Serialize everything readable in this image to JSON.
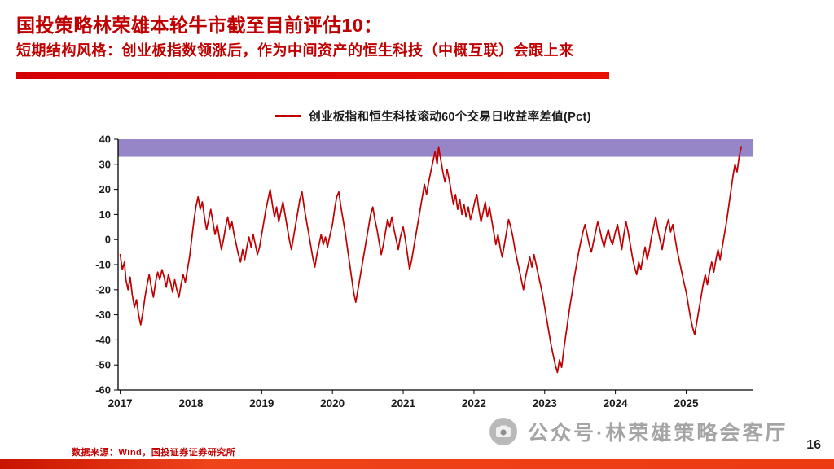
{
  "slide": {
    "title": "国投策略林荣雄本轮牛市截至目前评估10：",
    "subtitle": "短期结构风格：创业板指数领涨后，作为中间资产的恒生科技（中概互联）会跟上来",
    "accent_color": "#c00000",
    "source_note": "数据来源：Wind，国投证券证券研究所",
    "watermark": "公众号·林荣雄策略会客厅",
    "page_number": "16"
  },
  "chart_data": {
    "type": "line",
    "title": "创业板指和恒生科技滚动60个交易日收益率差值(Pct)",
    "xlabel": "",
    "ylabel": "",
    "grid": false,
    "legend_position": "top-center",
    "xlim": [
      2016.97,
      2025.95
    ],
    "ylim": [
      -60,
      40
    ],
    "x_ticks": [
      2017,
      2018,
      2019,
      2020,
      2021,
      2022,
      2023,
      2024,
      2025
    ],
    "y_ticks": [
      40,
      30,
      20,
      10,
      0,
      -10,
      -20,
      -30,
      -40,
      -50,
      -60
    ],
    "highlight_band": {
      "from": 33,
      "to": 40,
      "color": "#8d7cc2"
    },
    "series": [
      {
        "name": "创业板指和恒生科技滚动60个交易日收益率差值(Pct)",
        "color": "#c00000",
        "points": [
          [
            2017.0,
            -6
          ],
          [
            2017.03,
            -12
          ],
          [
            2017.06,
            -9
          ],
          [
            2017.08,
            -16
          ],
          [
            2017.11,
            -20
          ],
          [
            2017.14,
            -15
          ],
          [
            2017.17,
            -22
          ],
          [
            2017.2,
            -27
          ],
          [
            2017.23,
            -24
          ],
          [
            2017.26,
            -30
          ],
          [
            2017.29,
            -34
          ],
          [
            2017.32,
            -29
          ],
          [
            2017.35,
            -23
          ],
          [
            2017.38,
            -18
          ],
          [
            2017.41,
            -14
          ],
          [
            2017.44,
            -19
          ],
          [
            2017.47,
            -23
          ],
          [
            2017.5,
            -17
          ],
          [
            2017.53,
            -13
          ],
          [
            2017.56,
            -16
          ],
          [
            2017.59,
            -12
          ],
          [
            2017.62,
            -15
          ],
          [
            2017.65,
            -19
          ],
          [
            2017.68,
            -14
          ],
          [
            2017.71,
            -17
          ],
          [
            2017.74,
            -21
          ],
          [
            2017.77,
            -16
          ],
          [
            2017.8,
            -20
          ],
          [
            2017.83,
            -23
          ],
          [
            2017.86,
            -18
          ],
          [
            2017.89,
            -14
          ],
          [
            2017.92,
            -17
          ],
          [
            2017.95,
            -12
          ],
          [
            2017.98,
            -7
          ],
          [
            2018.01,
            0
          ],
          [
            2018.04,
            7
          ],
          [
            2018.07,
            13
          ],
          [
            2018.1,
            17
          ],
          [
            2018.13,
            12
          ],
          [
            2018.16,
            15
          ],
          [
            2018.19,
            9
          ],
          [
            2018.22,
            4
          ],
          [
            2018.25,
            8
          ],
          [
            2018.28,
            12
          ],
          [
            2018.31,
            7
          ],
          [
            2018.34,
            2
          ],
          [
            2018.37,
            6
          ],
          [
            2018.4,
            1
          ],
          [
            2018.43,
            -4
          ],
          [
            2018.46,
            0
          ],
          [
            2018.49,
            5
          ],
          [
            2018.52,
            9
          ],
          [
            2018.55,
            4
          ],
          [
            2018.58,
            7
          ],
          [
            2018.61,
            2
          ],
          [
            2018.64,
            -2
          ],
          [
            2018.67,
            -6
          ],
          [
            2018.7,
            -9
          ],
          [
            2018.73,
            -4
          ],
          [
            2018.76,
            -8
          ],
          [
            2018.79,
            -3
          ],
          [
            2018.82,
            1
          ],
          [
            2018.85,
            -3
          ],
          [
            2018.88,
            2
          ],
          [
            2018.91,
            -2
          ],
          [
            2018.94,
            -6
          ],
          [
            2018.97,
            -3
          ],
          [
            2019.0,
            2
          ],
          [
            2019.03,
            7
          ],
          [
            2019.06,
            12
          ],
          [
            2019.09,
            16
          ],
          [
            2019.12,
            20
          ],
          [
            2019.15,
            14
          ],
          [
            2019.18,
            9
          ],
          [
            2019.21,
            13
          ],
          [
            2019.24,
            7
          ],
          [
            2019.27,
            11
          ],
          [
            2019.3,
            15
          ],
          [
            2019.33,
            10
          ],
          [
            2019.36,
            5
          ],
          [
            2019.39,
            0
          ],
          [
            2019.42,
            -4
          ],
          [
            2019.45,
            1
          ],
          [
            2019.48,
            6
          ],
          [
            2019.51,
            11
          ],
          [
            2019.54,
            16
          ],
          [
            2019.57,
            19
          ],
          [
            2019.6,
            13
          ],
          [
            2019.63,
            8
          ],
          [
            2019.66,
            3
          ],
          [
            2019.69,
            -2
          ],
          [
            2019.72,
            -7
          ],
          [
            2019.75,
            -11
          ],
          [
            2019.78,
            -6
          ],
          [
            2019.81,
            -2
          ],
          [
            2019.84,
            2
          ],
          [
            2019.87,
            -2
          ],
          [
            2019.9,
            1
          ],
          [
            2019.93,
            -3
          ],
          [
            2019.96,
            1
          ],
          [
            2020.0,
            6
          ],
          [
            2020.03,
            12
          ],
          [
            2020.06,
            17
          ],
          [
            2020.09,
            19
          ],
          [
            2020.12,
            13
          ],
          [
            2020.15,
            8
          ],
          [
            2020.18,
            3
          ],
          [
            2020.21,
            -3
          ],
          [
            2020.24,
            -9
          ],
          [
            2020.27,
            -15
          ],
          [
            2020.3,
            -21
          ],
          [
            2020.33,
            -25
          ],
          [
            2020.36,
            -20
          ],
          [
            2020.39,
            -15
          ],
          [
            2020.42,
            -10
          ],
          [
            2020.45,
            -5
          ],
          [
            2020.48,
            0
          ],
          [
            2020.51,
            5
          ],
          [
            2020.54,
            10
          ],
          [
            2020.57,
            13
          ],
          [
            2020.6,
            8
          ],
          [
            2020.63,
            4
          ],
          [
            2020.66,
            -1
          ],
          [
            2020.69,
            -6
          ],
          [
            2020.72,
            -2
          ],
          [
            2020.75,
            3
          ],
          [
            2020.78,
            8
          ],
          [
            2020.81,
            5
          ],
          [
            2020.84,
            9
          ],
          [
            2020.87,
            4
          ],
          [
            2020.9,
            0
          ],
          [
            2020.93,
            -4
          ],
          [
            2020.96,
            1
          ],
          [
            2021.0,
            5
          ],
          [
            2021.03,
            0
          ],
          [
            2021.06,
            -6
          ],
          [
            2021.09,
            -12
          ],
          [
            2021.12,
            -8
          ],
          [
            2021.15,
            -3
          ],
          [
            2021.18,
            2
          ],
          [
            2021.21,
            7
          ],
          [
            2021.24,
            12
          ],
          [
            2021.27,
            17
          ],
          [
            2021.3,
            22
          ],
          [
            2021.33,
            18
          ],
          [
            2021.36,
            23
          ],
          [
            2021.39,
            27
          ],
          [
            2021.42,
            31
          ],
          [
            2021.45,
            35
          ],
          [
            2021.48,
            30
          ],
          [
            2021.5,
            37
          ],
          [
            2021.53,
            32
          ],
          [
            2021.56,
            27
          ],
          [
            2021.59,
            23
          ],
          [
            2021.62,
            28
          ],
          [
            2021.65,
            24
          ],
          [
            2021.68,
            19
          ],
          [
            2021.71,
            14
          ],
          [
            2021.74,
            18
          ],
          [
            2021.77,
            12
          ],
          [
            2021.8,
            16
          ],
          [
            2021.83,
            10
          ],
          [
            2021.86,
            14
          ],
          [
            2021.89,
            9
          ],
          [
            2021.92,
            13
          ],
          [
            2021.95,
            8
          ],
          [
            2021.98,
            11
          ],
          [
            2022.01,
            15
          ],
          [
            2022.04,
            18
          ],
          [
            2022.07,
            12
          ],
          [
            2022.1,
            7
          ],
          [
            2022.13,
            11
          ],
          [
            2022.16,
            15
          ],
          [
            2022.19,
            9
          ],
          [
            2022.22,
            13
          ],
          [
            2022.25,
            8
          ],
          [
            2022.28,
            3
          ],
          [
            2022.31,
            -2
          ],
          [
            2022.34,
            2
          ],
          [
            2022.37,
            -3
          ],
          [
            2022.4,
            -7
          ],
          [
            2022.43,
            -2
          ],
          [
            2022.46,
            3
          ],
          [
            2022.49,
            8
          ],
          [
            2022.52,
            5
          ],
          [
            2022.55,
            1
          ],
          [
            2022.58,
            -4
          ],
          [
            2022.61,
            -8
          ],
          [
            2022.64,
            -12
          ],
          [
            2022.67,
            -16
          ],
          [
            2022.7,
            -20
          ],
          [
            2022.73,
            -15
          ],
          [
            2022.76,
            -11
          ],
          [
            2022.79,
            -7
          ],
          [
            2022.82,
            -11
          ],
          [
            2022.85,
            -6
          ],
          [
            2022.88,
            -10
          ],
          [
            2022.91,
            -14
          ],
          [
            2022.94,
            -18
          ],
          [
            2022.97,
            -22
          ],
          [
            2023.0,
            -27
          ],
          [
            2023.03,
            -32
          ],
          [
            2023.06,
            -37
          ],
          [
            2023.09,
            -42
          ],
          [
            2023.12,
            -46
          ],
          [
            2023.15,
            -50
          ],
          [
            2023.18,
            -53
          ],
          [
            2023.21,
            -48
          ],
          [
            2023.24,
            -51
          ],
          [
            2023.27,
            -44
          ],
          [
            2023.3,
            -38
          ],
          [
            2023.33,
            -32
          ],
          [
            2023.36,
            -26
          ],
          [
            2023.39,
            -21
          ],
          [
            2023.42,
            -15
          ],
          [
            2023.45,
            -10
          ],
          [
            2023.48,
            -5
          ],
          [
            2023.51,
            -1
          ],
          [
            2023.54,
            3
          ],
          [
            2023.57,
            6
          ],
          [
            2023.6,
            2
          ],
          [
            2023.63,
            -2
          ],
          [
            2023.66,
            -5
          ],
          [
            2023.69,
            -1
          ],
          [
            2023.72,
            3
          ],
          [
            2023.75,
            7
          ],
          [
            2023.78,
            4
          ],
          [
            2023.81,
            0
          ],
          [
            2023.84,
            -3
          ],
          [
            2023.87,
            1
          ],
          [
            2023.9,
            4
          ],
          [
            2023.93,
            0
          ],
          [
            2023.96,
            -2
          ],
          [
            2024.0,
            3
          ],
          [
            2024.03,
            6
          ],
          [
            2024.06,
            1
          ],
          [
            2024.09,
            -4
          ],
          [
            2024.12,
            2
          ],
          [
            2024.15,
            7
          ],
          [
            2024.18,
            3
          ],
          [
            2024.21,
            -2
          ],
          [
            2024.24,
            -7
          ],
          [
            2024.27,
            -11
          ],
          [
            2024.3,
            -14
          ],
          [
            2024.33,
            -9
          ],
          [
            2024.36,
            -12
          ],
          [
            2024.39,
            -7
          ],
          [
            2024.42,
            -3
          ],
          [
            2024.45,
            -8
          ],
          [
            2024.48,
            -4
          ],
          [
            2024.51,
            1
          ],
          [
            2024.54,
            5
          ],
          [
            2024.57,
            9
          ],
          [
            2024.6,
            4
          ],
          [
            2024.63,
            0
          ],
          [
            2024.66,
            -4
          ],
          [
            2024.69,
            1
          ],
          [
            2024.72,
            5
          ],
          [
            2024.75,
            8
          ],
          [
            2024.78,
            3
          ],
          [
            2024.81,
            6
          ],
          [
            2024.84,
            1
          ],
          [
            2024.87,
            -4
          ],
          [
            2024.9,
            -8
          ],
          [
            2024.93,
            -12
          ],
          [
            2024.96,
            -16
          ],
          [
            2025.0,
            -21
          ],
          [
            2025.03,
            -26
          ],
          [
            2025.06,
            -31
          ],
          [
            2025.09,
            -35
          ],
          [
            2025.12,
            -38
          ],
          [
            2025.15,
            -33
          ],
          [
            2025.18,
            -28
          ],
          [
            2025.21,
            -23
          ],
          [
            2025.24,
            -18
          ],
          [
            2025.27,
            -14
          ],
          [
            2025.3,
            -18
          ],
          [
            2025.33,
            -13
          ],
          [
            2025.36,
            -9
          ],
          [
            2025.39,
            -13
          ],
          [
            2025.42,
            -8
          ],
          [
            2025.45,
            -4
          ],
          [
            2025.48,
            -8
          ],
          [
            2025.51,
            -3
          ],
          [
            2025.54,
            2
          ],
          [
            2025.57,
            7
          ],
          [
            2025.6,
            13
          ],
          [
            2025.63,
            19
          ],
          [
            2025.66,
            25
          ],
          [
            2025.69,
            30
          ],
          [
            2025.72,
            27
          ],
          [
            2025.75,
            33
          ],
          [
            2025.78,
            37
          ]
        ]
      }
    ]
  }
}
